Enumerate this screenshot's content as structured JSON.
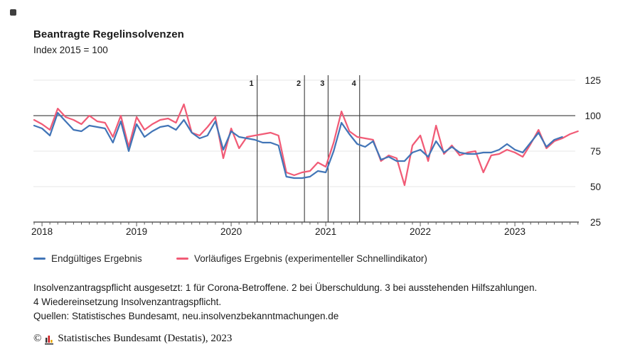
{
  "header": {
    "title": "Beantragte Regelinsolvenzen",
    "subtitle": "Index 2015 = 100"
  },
  "footnotes": {
    "restriction": "Insolvenzantragspflicht ausgesetzt: 1 für Corona-Betroffene. 2 bei Überschuldung. 3 bei ausstehenden Hilfszahlungen. 4 Wiedereinsetzung Insolvenzantragspflicht.",
    "sources": "Quellen: Statistisches Bundesamt, neu.insolvenzbekanntmachungen.de"
  },
  "copyright": {
    "symbol": "©",
    "text": "Statistisches Bundesamt (Destatis), 2023",
    "logo_colors": {
      "bar1": "#333333",
      "bar2": "#cc1517",
      "bar3": "#e8a500",
      "baseline": "#333333"
    }
  },
  "colors": {
    "grid_light": "#e7e7e7",
    "grid_reference": "#6b6b6b",
    "axis": "#5a5a5a",
    "event_line": "#3c3c3c",
    "text": "#1a1a1a"
  },
  "chart_data": {
    "type": "line",
    "title": "Beantragte Regelinsolvenzen",
    "subtitle": "Index 2015 = 100",
    "frequency": "monthly",
    "x_start": "2017-12",
    "year_ticks": [
      "2018",
      "2019",
      "2020",
      "2021",
      "2022",
      "2023"
    ],
    "ylim": [
      25,
      125
    ],
    "y_ticks": [
      125,
      100,
      75,
      50,
      25
    ],
    "reference_line": 100,
    "grid": "horizontal-light",
    "legend_position": "bottom-left",
    "series": [
      {
        "name": "Endgültiges Ergebnis",
        "color": "#4275b7",
        "x_end": "2023-07",
        "values": [
          93,
          91,
          86,
          102,
          96,
          90,
          89,
          93,
          92,
          91,
          81,
          96,
          75,
          94,
          85,
          89,
          92,
          93,
          90,
          97,
          88,
          84,
          86,
          96,
          76,
          89,
          85,
          84,
          83,
          81,
          81,
          79,
          57,
          56,
          56,
          57,
          61,
          60,
          75,
          95,
          87,
          80,
          78,
          82,
          69,
          71,
          68,
          68,
          74,
          76,
          71,
          82,
          74,
          78,
          74,
          73,
          73,
          74,
          74,
          76,
          80,
          76,
          74,
          81,
          88,
          78,
          83,
          85
        ]
      },
      {
        "name": "Vorläufiges Ergebnis (experimenteller Schnellindikator)",
        "color": "#f15b76",
        "x_end": "2023-09",
        "values": [
          97,
          94,
          90,
          105,
          99,
          97,
          94,
          100,
          96,
          95,
          85,
          100,
          78,
          99,
          90,
          94,
          97,
          98,
          95,
          108,
          88,
          86,
          92,
          99,
          70,
          91,
          77,
          85,
          86,
          87,
          88,
          86,
          60,
          58,
          60,
          61,
          67,
          64,
          81,
          103,
          89,
          85,
          84,
          83,
          68,
          72,
          70,
          51,
          79,
          86,
          68,
          93,
          73,
          79,
          72,
          74,
          75,
          60,
          72,
          73,
          76,
          74,
          71,
          80,
          90,
          77,
          82,
          84,
          87,
          89
        ]
      }
    ],
    "event_lines": [
      {
        "label": "1",
        "month": "2020-04"
      },
      {
        "label": "2",
        "month": "2020-10"
      },
      {
        "label": "3",
        "month": "2021-01"
      },
      {
        "label": "4",
        "month": "2021-05"
      }
    ]
  }
}
